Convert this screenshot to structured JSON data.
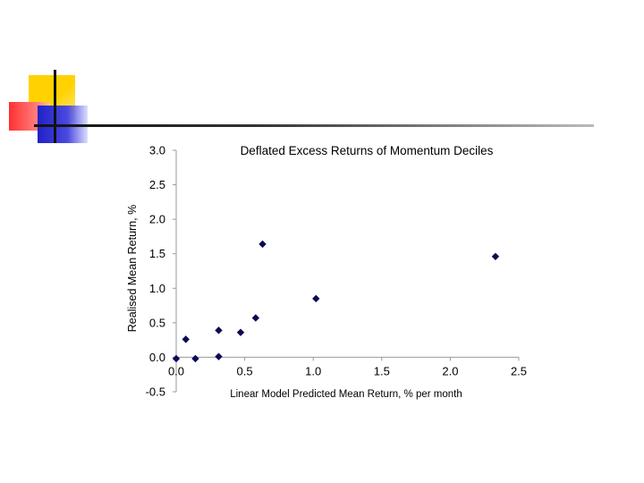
{
  "chart_data": {
    "type": "scatter",
    "title": "Deflated Excess Returns of Momentum Deciles",
    "xlabel": "Linear Model Predicted Mean Return, % per month",
    "ylabel": "Realised Mean Return, %",
    "xlim": [
      0.0,
      2.5
    ],
    "ylim": [
      -0.5,
      3.0
    ],
    "xticks": [
      "0.0",
      "0.5",
      "1.0",
      "1.5",
      "2.0",
      "2.5"
    ],
    "yticks": [
      "-0.5",
      "0.0",
      "0.5",
      "1.0",
      "1.5",
      "2.0",
      "2.5",
      "3.0"
    ],
    "grid": false,
    "marker_color": "#0a0a55",
    "points": [
      {
        "x": 0.0,
        "y": -0.02
      },
      {
        "x": 0.07,
        "y": 0.26
      },
      {
        "x": 0.14,
        "y": -0.02
      },
      {
        "x": 0.31,
        "y": 0.01
      },
      {
        "x": 0.31,
        "y": 0.39
      },
      {
        "x": 0.47,
        "y": 0.36
      },
      {
        "x": 0.58,
        "y": 0.57
      },
      {
        "x": 0.63,
        "y": 1.64
      },
      {
        "x": 1.02,
        "y": 0.85
      },
      {
        "x": 2.33,
        "y": 1.46
      }
    ]
  }
}
